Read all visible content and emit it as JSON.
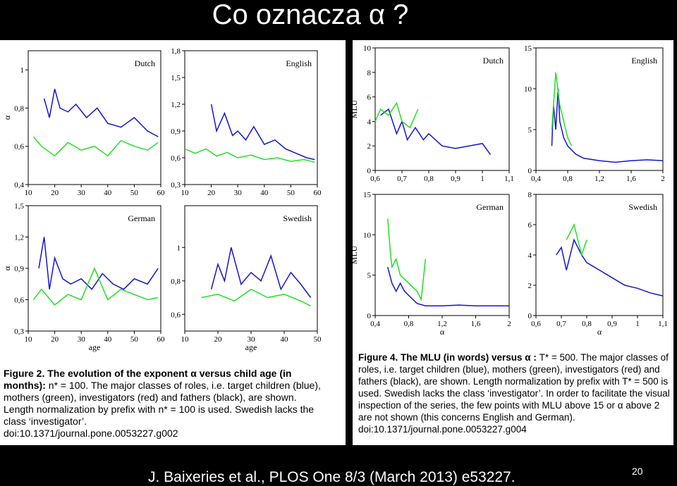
{
  "title": "Co oznacza α ?",
  "figure2": {
    "panels": [
      {
        "label": "Dutch",
        "xlim": [
          10,
          60
        ],
        "ylim": [
          0.4,
          1.1
        ],
        "xticks": [
          10,
          20,
          30,
          40,
          50,
          60
        ],
        "yticks": [
          {
            "value": 0.4,
            "label": "0,4"
          },
          {
            "value": 0.6,
            "label": "0,6"
          },
          {
            "value": 0.8,
            "label": "0,8"
          },
          1
        ],
        "ylabel": "α",
        "series": [
          {
            "color": "#1515d0",
            "x": [
              16,
              18,
              20,
              22,
              25,
              28,
              32,
              36,
              40,
              45,
              50,
              55,
              59
            ],
            "values": [
              0.85,
              0.75,
              0.9,
              0.8,
              0.78,
              0.82,
              0.75,
              0.8,
              0.72,
              0.7,
              0.75,
              0.68,
              0.65
            ]
          },
          {
            "color": "#22e022",
            "x": [
              12,
              15,
              20,
              25,
              30,
              35,
              40,
              45,
              50,
              55,
              59
            ],
            "values": [
              0.65,
              0.6,
              0.55,
              0.62,
              0.58,
              0.6,
              0.55,
              0.63,
              0.6,
              0.58,
              0.62
            ]
          }
        ]
      },
      {
        "label": "English",
        "xlim": [
          10,
          60
        ],
        "ylim": [
          0.3,
          1.8
        ],
        "xticks": [
          10,
          20,
          30,
          40,
          50,
          60
        ],
        "yticks": [
          {
            "value": 0.3,
            "label": "0,3"
          },
          {
            "value": 0.6,
            "label": "0,6"
          },
          {
            "value": 0.9,
            "label": "0,9"
          },
          {
            "value": 1.2,
            "label": "1,2"
          },
          {
            "value": 1.5,
            "label": "1,5"
          },
          {
            "value": 1.8,
            "label": "1,8"
          }
        ],
        "series": [
          {
            "color": "#1515d0",
            "x": [
              20,
              22,
              25,
              28,
              30,
              33,
              36,
              40,
              44,
              48,
              52,
              56,
              59
            ],
            "values": [
              1.2,
              0.9,
              1.1,
              0.85,
              0.9,
              0.8,
              0.95,
              0.75,
              0.8,
              0.7,
              0.65,
              0.6,
              0.58
            ]
          },
          {
            "color": "#22e022",
            "x": [
              10,
              14,
              18,
              22,
              26,
              30,
              35,
              40,
              45,
              50,
              55,
              59
            ],
            "values": [
              0.7,
              0.65,
              0.7,
              0.62,
              0.66,
              0.6,
              0.63,
              0.58,
              0.6,
              0.56,
              0.58,
              0.55
            ]
          }
        ]
      },
      {
        "label": "German",
        "xlim": [
          10,
          60
        ],
        "ylim": [
          0.3,
          1.5
        ],
        "xticks": [
          10,
          20,
          30,
          40,
          50,
          60
        ],
        "yticks": [
          {
            "value": 0.3,
            "label": "0,3"
          },
          {
            "value": 0.6,
            "label": "0,6"
          },
          {
            "value": 0.9,
            "label": "0,9"
          },
          {
            "value": 1.2,
            "label": "1,2"
          },
          {
            "value": 1.5,
            "label": "1,5"
          }
        ],
        "xlabel": "age",
        "ylabel": "α",
        "series": [
          {
            "color": "#1515d0",
            "x": [
              14,
              16,
              18,
              20,
              23,
              26,
              30,
              34,
              38,
              42,
              46,
              50,
              55,
              59
            ],
            "values": [
              0.9,
              1.2,
              0.7,
              1.0,
              0.8,
              0.75,
              0.8,
              0.7,
              0.85,
              0.75,
              0.7,
              0.8,
              0.75,
              0.9
            ]
          },
          {
            "color": "#22e022",
            "x": [
              12,
              15,
              20,
              25,
              30,
              35,
              40,
              45,
              50,
              55,
              59
            ],
            "values": [
              0.6,
              0.7,
              0.55,
              0.65,
              0.6,
              0.9,
              0.6,
              0.7,
              0.65,
              0.6,
              0.62
            ]
          }
        ]
      },
      {
        "label": "Swedish",
        "xlim": [
          10,
          50
        ],
        "ylim": [
          0.5,
          1.25
        ],
        "xticks": [
          10,
          20,
          30,
          40,
          50
        ],
        "yticks": [
          {
            "value": 0.6,
            "label": "0,6"
          },
          {
            "value": 0.8,
            "label": "0,8"
          },
          1
        ],
        "xlabel": "age",
        "series": [
          {
            "color": "#1515d0",
            "x": [
              18,
              20,
              22,
              24,
              27,
              30,
              33,
              36,
              39,
              42,
              45,
              48
            ],
            "values": [
              0.75,
              0.9,
              0.8,
              1.0,
              0.78,
              0.85,
              0.8,
              0.95,
              0.75,
              0.85,
              0.78,
              0.7
            ]
          },
          {
            "color": "#22e022",
            "x": [
              15,
              20,
              25,
              30,
              35,
              40,
              45,
              48
            ],
            "values": [
              0.7,
              0.72,
              0.68,
              0.75,
              0.7,
              0.72,
              0.68,
              0.65
            ]
          }
        ]
      }
    ],
    "caption_bold": "Figure 2. The evolution of the exponent α versus child age (in months):",
    "caption": "n* = 100. The major classes of roles, i.e. target children (blue), mothers (green), investigators (red) and fathers (black), are shown. Length normalization by prefix with n* = 100 is used. Swedish lacks the class ‘investigator’.",
    "doi": "doi:10.1371/journal.pone.0053227.g002"
  },
  "figure4": {
    "panels": [
      {
        "label": "Dutch",
        "xlim": [
          0.6,
          1.1
        ],
        "ylim": [
          0,
          10
        ],
        "xticks": [
          {
            "value": 0.6,
            "label": "0,6"
          },
          {
            "value": 0.7,
            "label": "0,7"
          },
          {
            "value": 0.8,
            "label": "0,8"
          },
          {
            "value": 0.9,
            "label": "0,9"
          },
          1,
          {
            "value": 1.1,
            "label": "1,1"
          }
        ],
        "yticks": [
          0,
          2,
          4,
          6,
          8,
          10
        ],
        "ylabel": "MLU",
        "series": [
          {
            "color": "#1515d0",
            "x": [
              0.62,
              0.65,
              0.68,
              0.7,
              0.72,
              0.75,
              0.78,
              0.8,
              0.85,
              0.9,
              0.95,
              1.0,
              1.03
            ],
            "values": [
              4.5,
              5,
              3,
              4,
              2.5,
              3.5,
              2.5,
              3,
              2,
              1.8,
              2,
              2.2,
              1.3
            ]
          },
          {
            "color": "#22e022",
            "x": [
              0.6,
              0.62,
              0.65,
              0.68,
              0.7,
              0.73,
              0.76
            ],
            "values": [
              4,
              5,
              4.5,
              5.5,
              4,
              3.5,
              5
            ]
          }
        ]
      },
      {
        "label": "English",
        "xlim": [
          0.4,
          2
        ],
        "ylim": [
          0,
          15
        ],
        "xticks": [
          {
            "value": 0.4,
            "label": "0,4"
          },
          {
            "value": 0.8,
            "label": "0,8"
          },
          {
            "value": 1.2,
            "label": "1,2"
          },
          {
            "value": 1.6,
            "label": "1,6"
          },
          2
        ],
        "yticks": [
          0,
          5,
          10,
          15
        ],
        "series": [
          {
            "color": "#1515d0",
            "x": [
              0.6,
              0.62,
              0.65,
              0.68,
              0.7,
              0.75,
              0.8,
              0.9,
              1.0,
              1.2,
              1.4,
              1.6,
              1.8,
              2.0
            ],
            "values": [
              3,
              8,
              5,
              10,
              6,
              4,
              3,
              2,
              1.5,
              1.2,
              1,
              1.2,
              1.3,
              1.2
            ]
          },
          {
            "color": "#22e022",
            "x": [
              0.6,
              0.65,
              0.7,
              0.75,
              0.8,
              0.85
            ],
            "values": [
              5,
              12,
              8,
              6,
              4,
              3
            ]
          }
        ]
      },
      {
        "label": "German",
        "xlim": [
          0.4,
          2
        ],
        "ylim": [
          0,
          15
        ],
        "xticks": [
          {
            "value": 0.4,
            "label": "0,4"
          },
          {
            "value": 0.8,
            "label": "0,8"
          },
          {
            "value": 1.2,
            "label": "1,2"
          },
          {
            "value": 1.6,
            "label": "1,6"
          },
          2
        ],
        "yticks": [
          0,
          5,
          10,
          15
        ],
        "xlabel": "α",
        "ylabel": "MLU",
        "series": [
          {
            "color": "#1515d0",
            "x": [
              0.55,
              0.6,
              0.65,
              0.7,
              0.75,
              0.8,
              0.85,
              0.9,
              1.0,
              1.2,
              1.4,
              1.6,
              1.8,
              2.0
            ],
            "values": [
              6,
              4,
              3,
              4,
              3,
              2.5,
              2,
              1.5,
              1.2,
              1.2,
              1.3,
              1.2,
              1.2,
              1.2
            ]
          },
          {
            "color": "#22e022",
            "x": [
              0.55,
              0.58,
              0.6,
              0.65,
              0.7,
              0.8,
              0.9,
              0.95,
              1.0
            ],
            "values": [
              12,
              8,
              6,
              7,
              5,
              4,
              3,
              2,
              7
            ]
          }
        ]
      },
      {
        "label": "Swedish",
        "xlim": [
          0.6,
          1.1
        ],
        "ylim": [
          0,
          8
        ],
        "xticks": [
          {
            "value": 0.6,
            "label": "0,6"
          },
          {
            "value": 0.7,
            "label": "0,7"
          },
          {
            "value": 0.8,
            "label": "0,8"
          },
          {
            "value": 0.9,
            "label": "0,9"
          },
          1,
          {
            "value": 1.1,
            "label": "1,1"
          }
        ],
        "yticks": [
          0,
          2,
          4,
          6,
          8
        ],
        "xlabel": "α",
        "series": [
          {
            "color": "#1515d0",
            "x": [
              0.68,
              0.7,
              0.72,
              0.75,
              0.78,
              0.8,
              0.85,
              0.9,
              0.95,
              1.0,
              1.05,
              1.1
            ],
            "values": [
              4,
              4.5,
              3,
              5,
              4,
              3.5,
              3,
              2.5,
              2,
              1.8,
              1.5,
              1.3
            ]
          },
          {
            "color": "#22e022",
            "x": [
              0.72,
              0.75,
              0.78,
              0.8
            ],
            "values": [
              5,
              6,
              4,
              5
            ]
          }
        ]
      }
    ],
    "caption_bold": "Figure 4. The MLU (in words) versus α :",
    "caption": "T* = 500. The major classes of roles, i.e. target children (blue), mothers (green), investigators (red) and fathers (black), are shown. Length normalization by prefix with T* = 500 is used. Swedish lacks the class ‘investigator’. In order to facilitate the visual inspection of the series, the few points with MLU above 15 or α above 2 are not shown (this concerns English and German).",
    "doi": "doi:10.1371/journal.pone.0053227.g004"
  },
  "footer": "J. Baixeries et al., PLOS One 8/3 (March 2013) e53227.",
  "page_number": "20"
}
